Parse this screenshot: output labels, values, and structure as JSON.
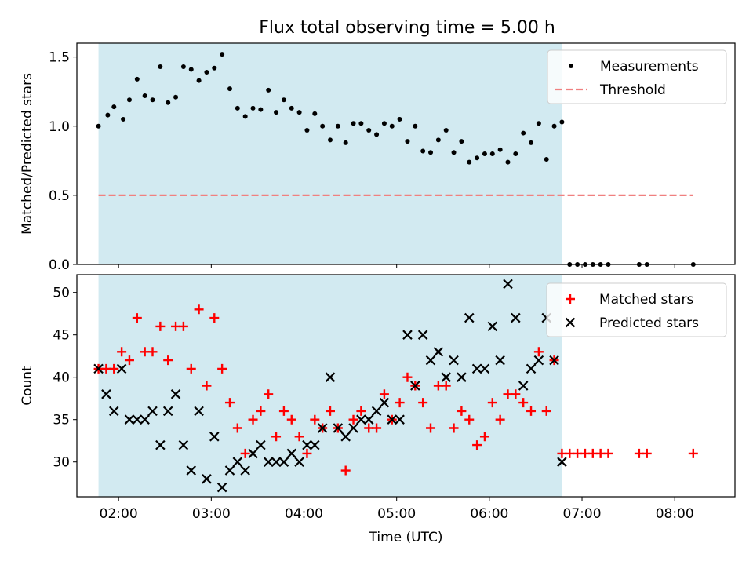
{
  "figure": {
    "title": "Flux total observing time = 5.00 h"
  },
  "chart_data": [
    {
      "type": "scatter",
      "title": "Flux total observing time = 5.00 h",
      "xlabel": "",
      "ylabel": "Matched/Predicted stars",
      "x_tick_labels": [
        "02:00",
        "03:00",
        "04:00",
        "05:00",
        "06:00",
        "07:00",
        "08:00"
      ],
      "y_tick_labels": [
        "0.0",
        "0.5",
        "1.0",
        "1.5"
      ],
      "ylim": [
        0,
        1.6
      ],
      "xlim": [
        "01:33",
        "08:39"
      ],
      "shaded_interval": [
        "01:47",
        "06:47"
      ],
      "shaded_color": "#add8e6",
      "legend_position": "top-right",
      "series": [
        {
          "name": "Measurements",
          "marker": "dot",
          "color": "#000000",
          "points": [
            [
              "01:47",
              1.0
            ],
            [
              "01:53",
              1.08
            ],
            [
              "01:57",
              1.14
            ],
            [
              "02:03",
              1.05
            ],
            [
              "02:07",
              1.19
            ],
            [
              "02:12",
              1.34
            ],
            [
              "02:17",
              1.22
            ],
            [
              "02:22",
              1.19
            ],
            [
              "02:27",
              1.43
            ],
            [
              "02:32",
              1.17
            ],
            [
              "02:37",
              1.21
            ],
            [
              "02:42",
              1.43
            ],
            [
              "02:47",
              1.41
            ],
            [
              "02:52",
              1.33
            ],
            [
              "02:57",
              1.39
            ],
            [
              "03:02",
              1.42
            ],
            [
              "03:07",
              1.52
            ],
            [
              "03:12",
              1.27
            ],
            [
              "03:17",
              1.13
            ],
            [
              "03:22",
              1.07
            ],
            [
              "03:27",
              1.13
            ],
            [
              "03:32",
              1.12
            ],
            [
              "03:37",
              1.26
            ],
            [
              "03:42",
              1.1
            ],
            [
              "03:47",
              1.19
            ],
            [
              "03:52",
              1.13
            ],
            [
              "03:57",
              1.1
            ],
            [
              "04:02",
              0.97
            ],
            [
              "04:07",
              1.09
            ],
            [
              "04:12",
              1.0
            ],
            [
              "04:17",
              0.9
            ],
            [
              "04:22",
              1.0
            ],
            [
              "04:27",
              0.88
            ],
            [
              "04:32",
              1.02
            ],
            [
              "04:37",
              1.02
            ],
            [
              "04:42",
              0.97
            ],
            [
              "04:47",
              0.94
            ],
            [
              "04:52",
              1.02
            ],
            [
              "04:57",
              1.0
            ],
            [
              "05:02",
              1.05
            ],
            [
              "05:07",
              0.89
            ],
            [
              "05:12",
              1.0
            ],
            [
              "05:17",
              0.82
            ],
            [
              "05:22",
              0.81
            ],
            [
              "05:27",
              0.9
            ],
            [
              "05:32",
              0.97
            ],
            [
              "05:37",
              0.81
            ],
            [
              "05:42",
              0.89
            ],
            [
              "05:47",
              0.74
            ],
            [
              "05:52",
              0.77
            ],
            [
              "05:57",
              0.8
            ],
            [
              "06:02",
              0.8
            ],
            [
              "06:07",
              0.83
            ],
            [
              "06:12",
              0.74
            ],
            [
              "06:17",
              0.8
            ],
            [
              "06:22",
              0.95
            ],
            [
              "06:27",
              0.88
            ],
            [
              "06:32",
              1.02
            ],
            [
              "06:37",
              0.76
            ],
            [
              "06:42",
              1.0
            ],
            [
              "06:47",
              1.03
            ],
            [
              "06:52",
              0.0
            ],
            [
              "06:57",
              0.0
            ],
            [
              "07:02",
              0.0
            ],
            [
              "07:07",
              0.0
            ],
            [
              "07:12",
              0.0
            ],
            [
              "07:17",
              0.0
            ],
            [
              "07:37",
              0.0
            ],
            [
              "07:42",
              0.0
            ],
            [
              "08:12",
              0.0
            ]
          ]
        },
        {
          "name": "Threshold",
          "line_style": "dashed",
          "color": "#f08080",
          "points": [
            [
              "01:47",
              0.5
            ],
            [
              "08:12",
              0.5
            ]
          ]
        }
      ]
    },
    {
      "type": "scatter",
      "title": "",
      "xlabel": "Time (UTC)",
      "ylabel": "Count",
      "x_tick_labels": [
        "02:00",
        "03:00",
        "04:00",
        "05:00",
        "06:00",
        "07:00",
        "08:00"
      ],
      "y_tick_labels": [
        "30",
        "35",
        "40",
        "45",
        "50"
      ],
      "ylim": [
        25.9,
        52.1
      ],
      "xlim": [
        "01:33",
        "08:39"
      ],
      "shaded_interval": [
        "01:47",
        "06:47"
      ],
      "shaded_color": "#add8e6",
      "legend_position": "top-right",
      "series": [
        {
          "name": "Matched stars",
          "marker": "plus",
          "color": "#ff0000",
          "points": [
            [
              "01:47",
              41
            ],
            [
              "01:52",
              41
            ],
            [
              "01:57",
              41
            ],
            [
              "02:02",
              43
            ],
            [
              "02:07",
              42
            ],
            [
              "02:12",
              47
            ],
            [
              "02:17",
              43
            ],
            [
              "02:22",
              43
            ],
            [
              "02:27",
              46
            ],
            [
              "02:32",
              42
            ],
            [
              "02:37",
              46
            ],
            [
              "02:42",
              46
            ],
            [
              "02:47",
              41
            ],
            [
              "02:52",
              48
            ],
            [
              "02:57",
              39
            ],
            [
              "03:02",
              47
            ],
            [
              "03:07",
              41
            ],
            [
              "03:12",
              37
            ],
            [
              "03:17",
              34
            ],
            [
              "03:22",
              31
            ],
            [
              "03:27",
              35
            ],
            [
              "03:32",
              36
            ],
            [
              "03:37",
              38
            ],
            [
              "03:42",
              33
            ],
            [
              "03:47",
              36
            ],
            [
              "03:52",
              35
            ],
            [
              "03:57",
              33
            ],
            [
              "04:02",
              31
            ],
            [
              "04:07",
              35
            ],
            [
              "04:12",
              34
            ],
            [
              "04:17",
              36
            ],
            [
              "04:22",
              34
            ],
            [
              "04:27",
              29
            ],
            [
              "04:32",
              35
            ],
            [
              "04:37",
              36
            ],
            [
              "04:42",
              34
            ],
            [
              "04:47",
              34
            ],
            [
              "04:52",
              38
            ],
            [
              "04:57",
              35
            ],
            [
              "05:02",
              37
            ],
            [
              "05:07",
              40
            ],
            [
              "05:12",
              39
            ],
            [
              "05:17",
              37
            ],
            [
              "05:22",
              34
            ],
            [
              "05:27",
              39
            ],
            [
              "05:32",
              39
            ],
            [
              "05:37",
              34
            ],
            [
              "05:42",
              36
            ],
            [
              "05:47",
              35
            ],
            [
              "05:52",
              32
            ],
            [
              "05:57",
              33
            ],
            [
              "06:02",
              37
            ],
            [
              "06:07",
              35
            ],
            [
              "06:12",
              38
            ],
            [
              "06:17",
              38
            ],
            [
              "06:22",
              37
            ],
            [
              "06:27",
              36
            ],
            [
              "06:32",
              43
            ],
            [
              "06:37",
              36
            ],
            [
              "06:42",
              42
            ],
            [
              "06:47",
              31
            ],
            [
              "06:52",
              31
            ],
            [
              "06:57",
              31
            ],
            [
              "07:02",
              31
            ],
            [
              "07:07",
              31
            ],
            [
              "07:12",
              31
            ],
            [
              "07:17",
              31
            ],
            [
              "07:37",
              31
            ],
            [
              "07:42",
              31
            ],
            [
              "08:12",
              31
            ]
          ]
        },
        {
          "name": "Predicted stars",
          "marker": "x",
          "color": "#000000",
          "points": [
            [
              "01:47",
              41
            ],
            [
              "01:52",
              38
            ],
            [
              "01:57",
              36
            ],
            [
              "02:02",
              41
            ],
            [
              "02:07",
              35
            ],
            [
              "02:12",
              35
            ],
            [
              "02:17",
              35
            ],
            [
              "02:22",
              36
            ],
            [
              "02:27",
              32
            ],
            [
              "02:32",
              36
            ],
            [
              "02:37",
              38
            ],
            [
              "02:42",
              32
            ],
            [
              "02:47",
              29
            ],
            [
              "02:52",
              36
            ],
            [
              "02:57",
              28
            ],
            [
              "03:02",
              33
            ],
            [
              "03:07",
              27
            ],
            [
              "03:12",
              29
            ],
            [
              "03:17",
              30
            ],
            [
              "03:22",
              29
            ],
            [
              "03:27",
              31
            ],
            [
              "03:32",
              32
            ],
            [
              "03:37",
              30
            ],
            [
              "03:42",
              30
            ],
            [
              "03:47",
              30
            ],
            [
              "03:52",
              31
            ],
            [
              "03:57",
              30
            ],
            [
              "04:02",
              32
            ],
            [
              "04:07",
              32
            ],
            [
              "04:12",
              34
            ],
            [
              "04:17",
              40
            ],
            [
              "04:22",
              34
            ],
            [
              "04:27",
              33
            ],
            [
              "04:32",
              34
            ],
            [
              "04:37",
              35
            ],
            [
              "04:42",
              35
            ],
            [
              "04:47",
              36
            ],
            [
              "04:52",
              37
            ],
            [
              "04:57",
              35
            ],
            [
              "05:02",
              35
            ],
            [
              "05:07",
              45
            ],
            [
              "05:12",
              39
            ],
            [
              "05:17",
              45
            ],
            [
              "05:22",
              42
            ],
            [
              "05:27",
              43
            ],
            [
              "05:32",
              40
            ],
            [
              "05:37",
              42
            ],
            [
              "05:42",
              40
            ],
            [
              "05:47",
              47
            ],
            [
              "05:52",
              41
            ],
            [
              "05:57",
              41
            ],
            [
              "06:02",
              46
            ],
            [
              "06:07",
              42
            ],
            [
              "06:12",
              51
            ],
            [
              "06:17",
              47
            ],
            [
              "06:22",
              39
            ],
            [
              "06:27",
              41
            ],
            [
              "06:32",
              42
            ],
            [
              "06:37",
              47
            ],
            [
              "06:42",
              42
            ],
            [
              "06:47",
              30
            ]
          ]
        }
      ]
    }
  ]
}
